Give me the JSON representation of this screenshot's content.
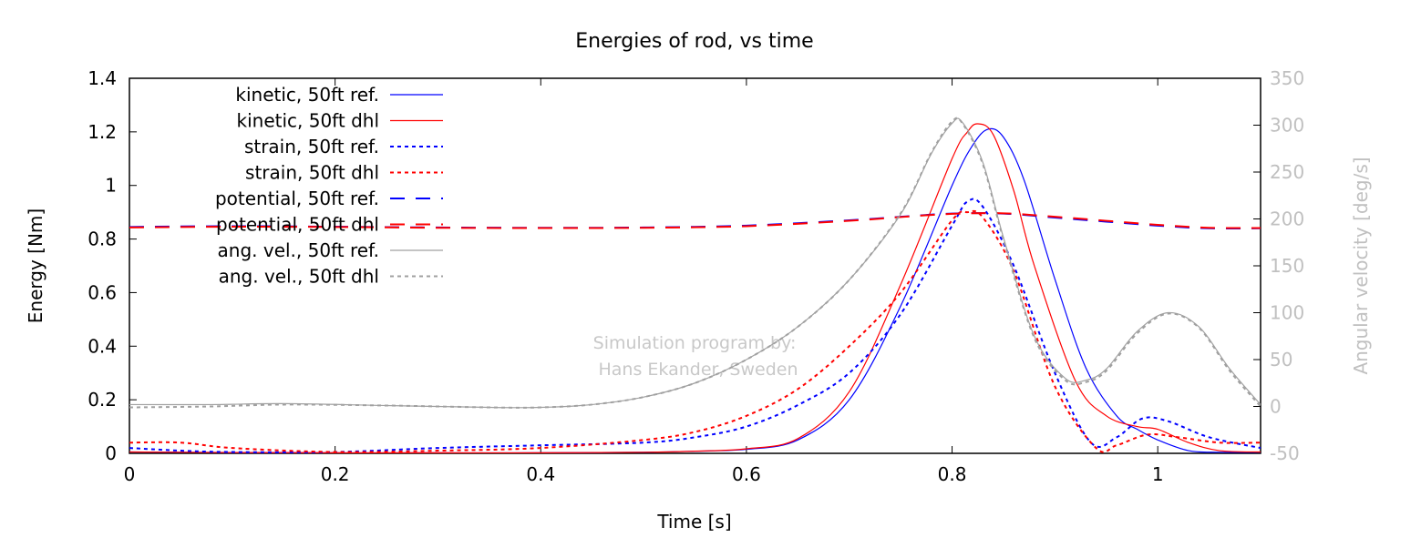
{
  "chart_data": {
    "type": "line",
    "title": "Energies of rod, vs time",
    "xlabel": "Time [s]",
    "ylabel": "Energy [Nm]",
    "y2label": "Angular velocity [deg/s]",
    "xlim": [
      0,
      1.1
    ],
    "ylim": [
      0,
      1.4
    ],
    "y2lim": [
      -50,
      350
    ],
    "xticks": [
      0,
      0.2,
      0.4,
      0.6,
      0.8,
      1
    ],
    "xtick_labels": [
      "0",
      "0.2",
      "0.4",
      "0.6",
      "0.8",
      "1"
    ],
    "yticks": [
      0,
      0.2,
      0.4,
      0.6,
      0.8,
      1,
      1.2,
      1.4
    ],
    "ytick_labels": [
      "0",
      "0.2",
      "0.4",
      "0.6",
      "0.8",
      "1",
      "1.2",
      "1.4"
    ],
    "y2ticks": [
      -50,
      0,
      50,
      100,
      150,
      200,
      250,
      300,
      350
    ],
    "y2tick_labels": [
      "-50",
      "0",
      "50",
      "100",
      "150",
      "200",
      "250",
      "300",
      "350"
    ],
    "grid": false,
    "legend_position": "top-left",
    "annotation": [
      "Simulation program by:",
      "Hans Ekander, Sweden"
    ],
    "colors": {
      "ref": "#0000ff",
      "dhl": "#ff0000",
      "angvel": "#a0a0a0",
      "axis2_text": "#c0c0c0",
      "annotation": "#c8c8c8"
    },
    "series": [
      {
        "name": "kinetic, 50ft ref.",
        "axis": "y",
        "color": "#0000ff",
        "style": "solid",
        "x": [
          0,
          0.1,
          0.2,
          0.3,
          0.4,
          0.5,
          0.55,
          0.6,
          0.65,
          0.7,
          0.75,
          0.8,
          0.82,
          0.835,
          0.85,
          0.87,
          0.9,
          0.93,
          0.96,
          0.98,
          1.0,
          1.03,
          1.06,
          1.1
        ],
        "y": [
          0.005,
          0.003,
          0.002,
          0.002,
          0.002,
          0.004,
          0.008,
          0.015,
          0.05,
          0.2,
          0.55,
          1.0,
          1.15,
          1.21,
          1.18,
          1.02,
          0.65,
          0.32,
          0.14,
          0.09,
          0.05,
          0.01,
          0.004,
          0.004
        ]
      },
      {
        "name": "kinetic, 50ft dhl",
        "axis": "y",
        "color": "#ff0000",
        "style": "solid",
        "x": [
          0,
          0.1,
          0.2,
          0.3,
          0.4,
          0.5,
          0.55,
          0.6,
          0.65,
          0.7,
          0.75,
          0.8,
          0.815,
          0.825,
          0.84,
          0.86,
          0.88,
          0.92,
          0.95,
          0.98,
          1.0,
          1.03,
          1.06,
          1.1
        ],
        "y": [
          0.005,
          0.003,
          0.002,
          0.002,
          0.002,
          0.004,
          0.008,
          0.017,
          0.055,
          0.23,
          0.63,
          1.1,
          1.2,
          1.23,
          1.19,
          0.98,
          0.7,
          0.27,
          0.14,
          0.1,
          0.09,
          0.04,
          0.01,
          0.005
        ]
      },
      {
        "name": "strain, 50ft ref.",
        "axis": "y",
        "color": "#0000ff",
        "style": "dotted",
        "x": [
          0,
          0.05,
          0.1,
          0.2,
          0.3,
          0.4,
          0.5,
          0.55,
          0.6,
          0.65,
          0.7,
          0.75,
          0.8,
          0.815,
          0.83,
          0.86,
          0.9,
          0.935,
          0.96,
          0.985,
          1.01,
          1.05,
          1.1
        ],
        "y": [
          0.02,
          0.01,
          0.005,
          0.005,
          0.02,
          0.03,
          0.04,
          0.06,
          0.1,
          0.18,
          0.3,
          0.52,
          0.85,
          0.94,
          0.92,
          0.7,
          0.3,
          0.04,
          0.06,
          0.13,
          0.12,
          0.06,
          0.02
        ]
      },
      {
        "name": "strain, 50ft dhl",
        "axis": "y",
        "color": "#ff0000",
        "style": "dotted",
        "x": [
          0,
          0.05,
          0.1,
          0.2,
          0.3,
          0.4,
          0.5,
          0.55,
          0.6,
          0.65,
          0.7,
          0.75,
          0.8,
          0.815,
          0.83,
          0.86,
          0.9,
          0.94,
          0.96,
          0.99,
          1.02,
          1.06,
          1.1
        ],
        "y": [
          0.04,
          0.04,
          0.02,
          0.005,
          0.01,
          0.02,
          0.05,
          0.08,
          0.14,
          0.24,
          0.4,
          0.6,
          0.87,
          0.9,
          0.88,
          0.68,
          0.25,
          0.02,
          0.03,
          0.07,
          0.06,
          0.04,
          0.04
        ]
      },
      {
        "name": "potential, 50ft ref.",
        "axis": "y",
        "color": "#0000ff",
        "style": "dashed",
        "x": [
          0,
          0.1,
          0.2,
          0.3,
          0.4,
          0.5,
          0.6,
          0.7,
          0.75,
          0.8,
          0.85,
          0.9,
          0.95,
          1.0,
          1.05,
          1.1
        ],
        "y": [
          0.845,
          0.848,
          0.846,
          0.843,
          0.842,
          0.843,
          0.85,
          0.87,
          0.883,
          0.895,
          0.895,
          0.88,
          0.865,
          0.85,
          0.84,
          0.84
        ]
      },
      {
        "name": "potential, 50ft dhl",
        "axis": "y",
        "color": "#ff0000",
        "style": "dashed",
        "x": [
          0,
          0.1,
          0.2,
          0.3,
          0.4,
          0.5,
          0.6,
          0.7,
          0.75,
          0.8,
          0.85,
          0.9,
          0.95,
          1.0,
          1.05,
          1.1
        ],
        "y": [
          0.843,
          0.846,
          0.845,
          0.842,
          0.841,
          0.842,
          0.848,
          0.868,
          0.882,
          0.894,
          0.896,
          0.883,
          0.868,
          0.853,
          0.842,
          0.841
        ]
      },
      {
        "name": "ang. vel., 50ft ref.",
        "axis": "y2",
        "color": "#a0a0a0",
        "style": "solid",
        "x": [
          0,
          0.08,
          0.15,
          0.25,
          0.35,
          0.4,
          0.45,
          0.5,
          0.55,
          0.6,
          0.65,
          0.7,
          0.75,
          0.78,
          0.8,
          0.81,
          0.83,
          0.85,
          0.88,
          0.91,
          0.93,
          0.95,
          0.98,
          1.01,
          1.04,
          1.07,
          1.1
        ],
        "y": [
          2,
          2,
          3,
          1,
          -1,
          -1,
          2,
          10,
          25,
          50,
          85,
          135,
          205,
          270,
          302,
          303,
          260,
          180,
          75,
          30,
          28,
          40,
          80,
          100,
          85,
          40,
          2
        ]
      },
      {
        "name": "ang. vel., 50ft dhl",
        "axis": "y2",
        "color": "#a0a0a0",
        "style": "dotted",
        "x": [
          0,
          0.08,
          0.15,
          0.25,
          0.35,
          0.4,
          0.45,
          0.5,
          0.55,
          0.6,
          0.65,
          0.7,
          0.75,
          0.78,
          0.8,
          0.81,
          0.83,
          0.85,
          0.88,
          0.91,
          0.93,
          0.95,
          0.98,
          1.01,
          1.04,
          1.07,
          1.1
        ],
        "y": [
          -1,
          0,
          2,
          1,
          -1,
          -1,
          2,
          10,
          25,
          50,
          85,
          135,
          206,
          271,
          304,
          302,
          258,
          178,
          73,
          28,
          26,
          38,
          78,
          99,
          84,
          38,
          0
        ]
      }
    ]
  }
}
